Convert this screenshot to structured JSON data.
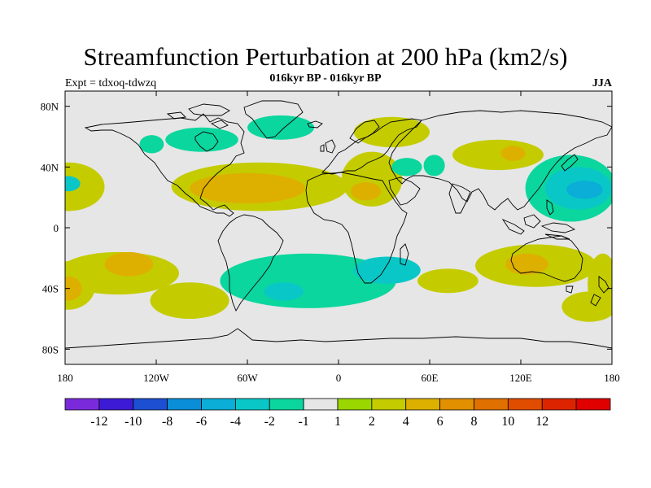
{
  "plot": {
    "title": "Streamfunction Perturbation at 200 hPa (km2/s)",
    "subtitle": "016kyr BP - 016kyr BP",
    "left_string": "Expt = tdxoq-tdwzq",
    "right_string": "JJA"
  },
  "map": {
    "projection": "cylindrical-equidistant",
    "lon_range": [
      -180,
      180
    ],
    "lat_range": [
      -90,
      90
    ],
    "x_ticks": [
      {
        "value": -180,
        "label": "180"
      },
      {
        "value": -120,
        "label": "120W"
      },
      {
        "value": -60,
        "label": "60W"
      },
      {
        "value": 0,
        "label": "0"
      },
      {
        "value": 60,
        "label": "60E"
      },
      {
        "value": 120,
        "label": "120E"
      },
      {
        "value": 180,
        "label": "180"
      }
    ],
    "y_ticks": [
      {
        "value": 80,
        "label": "80N"
      },
      {
        "value": 40,
        "label": "40N"
      },
      {
        "value": 0,
        "label": "0"
      },
      {
        "value": -40,
        "label": "40S"
      },
      {
        "value": -80,
        "label": "80S"
      }
    ],
    "background_color": "#e6e6e6",
    "field_regions": [
      {
        "name": "north-pacific-east",
        "level": 2,
        "lon": -178,
        "lat": 27,
        "rx": 24,
        "ry": 16
      },
      {
        "name": "north-pacific-east-core",
        "level": -2,
        "lon": -178,
        "lat": 29,
        "rx": 8,
        "ry": 5
      },
      {
        "name": "west-pacific-negative",
        "level": -1,
        "lon": 153,
        "lat": 26,
        "rx": 30,
        "ry": 22
      },
      {
        "name": "west-pacific-negative-mid",
        "level": -2,
        "lon": 158,
        "lat": 26,
        "rx": 22,
        "ry": 14
      },
      {
        "name": "west-pacific-negative-core",
        "level": -4,
        "lon": 162,
        "lat": 25,
        "rx": 12,
        "ry": 6
      },
      {
        "name": "north-atlantic-positive",
        "level": 2,
        "lon": -52,
        "lat": 27,
        "rx": 58,
        "ry": 16
      },
      {
        "name": "north-atlantic-positive-core",
        "level": 4,
        "lon": -60,
        "lat": 26,
        "rx": 38,
        "ry": 10
      },
      {
        "name": "mediterranean-positive",
        "level": 2,
        "lon": 22,
        "lat": 32,
        "rx": 20,
        "ry": 18
      },
      {
        "name": "africa-positive",
        "level": 4,
        "lon": 18,
        "lat": 24,
        "rx": 10,
        "ry": 6
      },
      {
        "name": "central-asia-positive",
        "level": 2,
        "lon": 105,
        "lat": 48,
        "rx": 30,
        "ry": 10
      },
      {
        "name": "central-asia-positive-core",
        "level": 4,
        "lon": 115,
        "lat": 49,
        "rx": 8,
        "ry": 5
      },
      {
        "name": "greenland-negative",
        "level": -1,
        "lon": -38,
        "lat": 66,
        "rx": 22,
        "ry": 8
      },
      {
        "name": "hudson-negative",
        "level": -1,
        "lon": -90,
        "lat": 58,
        "rx": 24,
        "ry": 8
      },
      {
        "name": "north-america-negative",
        "level": -1,
        "lon": -123,
        "lat": 55,
        "rx": 8,
        "ry": 6
      },
      {
        "name": "arctic-positive",
        "level": 2,
        "lon": 35,
        "lat": 63,
        "rx": 25,
        "ry": 10
      },
      {
        "name": "caspian-negative",
        "level": -1,
        "lon": 63,
        "lat": 41,
        "rx": 7,
        "ry": 7
      },
      {
        "name": "arabia-negative",
        "level": -1,
        "lon": 45,
        "lat": 40,
        "rx": 10,
        "ry": 6
      },
      {
        "name": "south-pacific-positive",
        "level": 2,
        "lon": -145,
        "lat": -30,
        "rx": 40,
        "ry": 14
      },
      {
        "name": "south-pacific-positive-core",
        "level": 4,
        "lon": -138,
        "lat": -24,
        "rx": 16,
        "ry": 8
      },
      {
        "name": "south-pacific-west",
        "level": 2,
        "lon": -178,
        "lat": -38,
        "rx": 18,
        "ry": 16
      },
      {
        "name": "south-pacific-west-core",
        "level": 4,
        "lon": -178,
        "lat": -40,
        "rx": 9,
        "ry": 8
      },
      {
        "name": "south-america-positive",
        "level": 2,
        "lon": -98,
        "lat": -48,
        "rx": 26,
        "ry": 12
      },
      {
        "name": "south-atlantic-negative",
        "level": -1,
        "lon": -20,
        "lat": -35,
        "rx": 58,
        "ry": 18
      },
      {
        "name": "south-atlantic-negative-core",
        "level": -2,
        "lon": -36,
        "lat": -42,
        "rx": 13,
        "ry": 6
      },
      {
        "name": "southern-africa-negative",
        "level": -2,
        "lon": 32,
        "lat": -28,
        "rx": 22,
        "ry": 9
      },
      {
        "name": "australia-positive",
        "level": 2,
        "lon": 130,
        "lat": -25,
        "rx": 40,
        "ry": 14
      },
      {
        "name": "australia-positive-core",
        "level": 4,
        "lon": 124,
        "lat": -24,
        "rx": 14,
        "ry": 7
      },
      {
        "name": "southwest-pacific-positive",
        "level": 2,
        "lon": 174,
        "lat": -37,
        "rx": 10,
        "ry": 20
      },
      {
        "name": "southern-ocean-positive",
        "level": 2,
        "lon": 165,
        "lat": -52,
        "rx": 18,
        "ry": 10
      },
      {
        "name": "indian-ocean-positive",
        "level": 2,
        "lon": 72,
        "lat": -35,
        "rx": 20,
        "ry": 8
      }
    ]
  },
  "colorbar": {
    "colors": [
      "#7b2adb",
      "#3d1bd6",
      "#1c4fd1",
      "#0a8ed8",
      "#0aaed6",
      "#0ac7c7",
      "#0bd69e",
      "#e6e6e6",
      "#9ad600",
      "#c4cc00",
      "#ddb000",
      "#e29000",
      "#e07000",
      "#e04c00",
      "#dd2400",
      "#e00000"
    ],
    "labels": [
      "-12",
      "-10",
      "-8",
      "-6",
      "-4",
      "-2",
      "-1",
      "1",
      "2",
      "4",
      "6",
      "8",
      "10",
      "12"
    ]
  }
}
